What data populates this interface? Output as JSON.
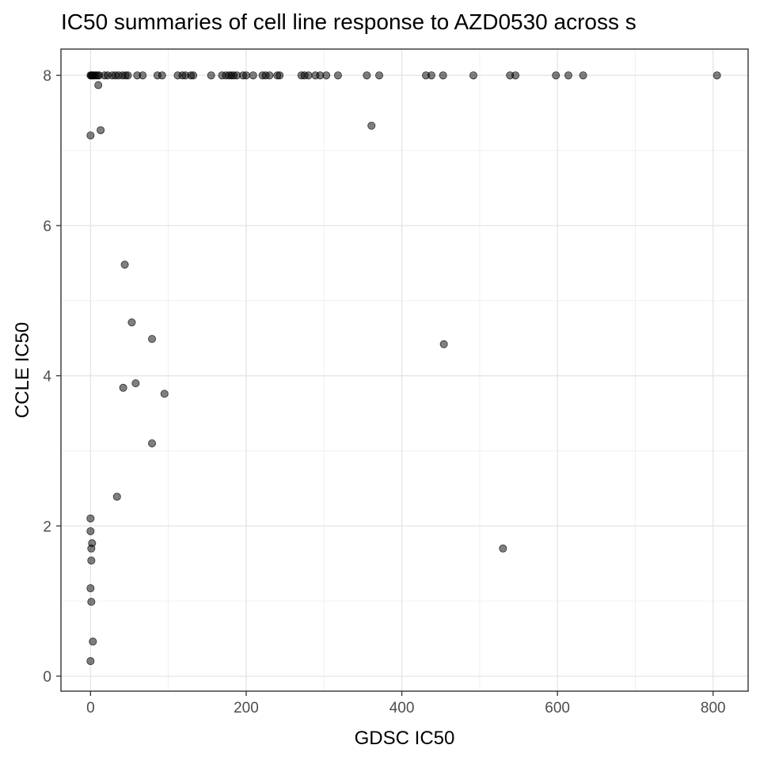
{
  "chart_data": {
    "type": "scatter",
    "title": "IC50 summaries of cell line response to AZD0530 across s",
    "xlabel": "GDSC IC50",
    "ylabel": "CCLE IC50",
    "xlim": [
      -38,
      845
    ],
    "ylim": [
      -0.2,
      8.35
    ],
    "xticks": [
      0,
      200,
      400,
      600,
      800
    ],
    "yticks": [
      0,
      2,
      4,
      6,
      8
    ],
    "grid": true,
    "point_color": "#000000",
    "point_opacity": 0.5,
    "series": [
      {
        "x": [
          0,
          1,
          2,
          3,
          5,
          7,
          9,
          11,
          18,
          22,
          28,
          32,
          36,
          41,
          45,
          48,
          60,
          67,
          86,
          92,
          112,
          118,
          122,
          129,
          132,
          155,
          169,
          174,
          178,
          181,
          184,
          188,
          196,
          200,
          209,
          221,
          225,
          230,
          240,
          243,
          271,
          275,
          280,
          289,
          295,
          303,
          318,
          355,
          371,
          431,
          438,
          453,
          492,
          539,
          546,
          598,
          614,
          633,
          805,
          10,
          0,
          13,
          361,
          44,
          53,
          79,
          42,
          58,
          95,
          79,
          34,
          0,
          0,
          2,
          1,
          1,
          0,
          1,
          3,
          0,
          454,
          530
        ],
        "y": [
          8,
          8,
          8,
          8,
          8,
          8,
          8,
          8,
          8,
          8,
          8,
          8,
          8,
          8,
          8,
          8,
          8,
          8,
          8,
          8,
          8,
          8,
          8,
          8,
          8,
          8,
          8,
          8,
          8,
          8,
          8,
          8,
          8,
          8,
          8,
          8,
          8,
          8,
          8,
          8,
          8,
          8,
          8,
          8,
          8,
          8,
          8,
          8,
          8,
          8,
          8,
          8,
          8,
          8,
          8,
          8,
          8,
          8,
          8,
          7.87,
          7.2,
          7.27,
          7.33,
          5.48,
          4.71,
          4.49,
          3.84,
          3.9,
          3.76,
          3.1,
          2.39,
          2.1,
          1.93,
          1.77,
          1.7,
          1.54,
          1.17,
          0.99,
          0.46,
          0.2,
          4.42,
          1.7
        ]
      }
    ]
  }
}
